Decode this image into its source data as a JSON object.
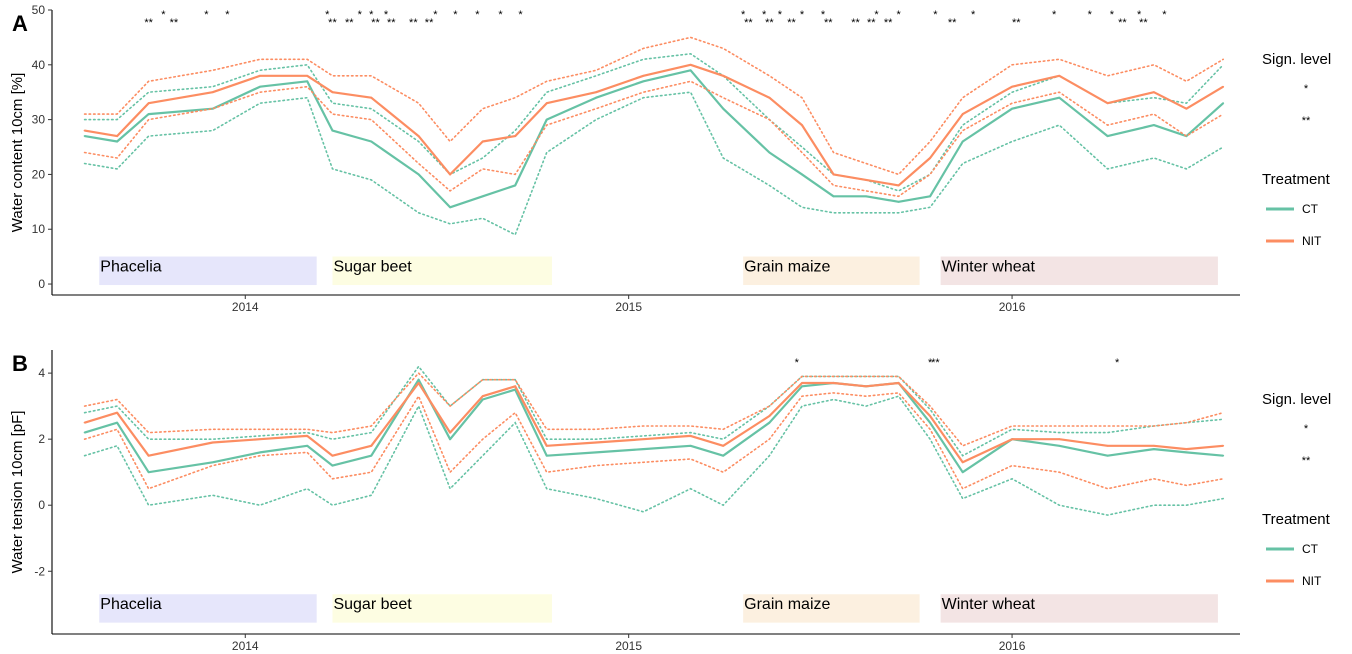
{
  "chart_data": [
    {
      "panel_letter": "A",
      "type": "line",
      "ylabel": "Water content 10cm [%]",
      "xlabel": "",
      "ylim": [
        -2,
        50
      ],
      "yticks": [
        "0",
        "10",
        "20",
        "30",
        "40",
        "50"
      ],
      "xlim": [
        "2013-07-01",
        "2016-08-05"
      ],
      "xticks": [
        "2014",
        "2015",
        "2016"
      ],
      "crop_periods": [
        {
          "label": "Phacelia",
          "start": "2013-08-15",
          "end": "2014-03-10",
          "color": "#e6e6fb"
        },
        {
          "label": "Sugar beet",
          "start": "2014-03-25",
          "end": "2014-10-20",
          "color": "#fdfde2"
        },
        {
          "label": "Grain maize",
          "start": "2015-04-20",
          "end": "2015-10-05",
          "color": "#fcf0e0"
        },
        {
          "label": "Winter wheat",
          "start": "2015-10-25",
          "end": "2016-07-15",
          "color": "#f3e4e4"
        }
      ],
      "series": [
        {
          "name": "CT",
          "color": "#66c2a5",
          "x": [
            "2013-08-01",
            "2013-09-01",
            "2013-10-01",
            "2013-12-01",
            "2014-01-15",
            "2014-03-01",
            "2014-03-25",
            "2014-05-01",
            "2014-06-15",
            "2014-07-15",
            "2014-08-15",
            "2014-09-15",
            "2014-10-15",
            "2014-12-01",
            "2015-01-15",
            "2015-03-01",
            "2015-04-01",
            "2015-05-15",
            "2015-06-15",
            "2015-07-15",
            "2015-08-15",
            "2015-09-15",
            "2015-10-15",
            "2015-11-15",
            "2016-01-01",
            "2016-02-15",
            "2016-04-01",
            "2016-05-15",
            "2016-06-15",
            "2016-07-20"
          ],
          "y": [
            27,
            26,
            31,
            32,
            36,
            37,
            28,
            26,
            20,
            14,
            16,
            18,
            30,
            34,
            37,
            39,
            32,
            24,
            20,
            16,
            16,
            15,
            16,
            26,
            32,
            34,
            27,
            29,
            27,
            33
          ],
          "lower": [
            22,
            21,
            27,
            28,
            33,
            34,
            21,
            19,
            13,
            11,
            12,
            9,
            24,
            30,
            34,
            35,
            23,
            18,
            14,
            13,
            13,
            13,
            14,
            22,
            26,
            29,
            21,
            23,
            21,
            25
          ],
          "upper": [
            30,
            30,
            35,
            36,
            39,
            40,
            33,
            32,
            26,
            20,
            23,
            28,
            35,
            38,
            41,
            42,
            38,
            30,
            25,
            20,
            19,
            17,
            20,
            29,
            35,
            38,
            33,
            34,
            33,
            40
          ]
        },
        {
          "name": "NIT",
          "color": "#fc8d62",
          "x": [
            "2013-08-01",
            "2013-09-01",
            "2013-10-01",
            "2013-12-01",
            "2014-01-15",
            "2014-03-01",
            "2014-03-25",
            "2014-05-01",
            "2014-06-15",
            "2014-07-15",
            "2014-08-15",
            "2014-09-15",
            "2014-10-15",
            "2014-12-01",
            "2015-01-15",
            "2015-03-01",
            "2015-04-01",
            "2015-05-15",
            "2015-06-15",
            "2015-07-15",
            "2015-08-15",
            "2015-09-15",
            "2015-10-15",
            "2015-11-15",
            "2016-01-01",
            "2016-02-15",
            "2016-04-01",
            "2016-05-15",
            "2016-06-15",
            "2016-07-20"
          ],
          "y": [
            28,
            27,
            33,
            35,
            38,
            38,
            35,
            34,
            27,
            20,
            26,
            27,
            33,
            35,
            38,
            40,
            38,
            34,
            29,
            20,
            19,
            18,
            23,
            31,
            36,
            38,
            33,
            35,
            32,
            36
          ],
          "lower": [
            24,
            23,
            30,
            32,
            35,
            36,
            31,
            30,
            22,
            17,
            21,
            20,
            29,
            32,
            35,
            37,
            34,
            30,
            24,
            18,
            17,
            16,
            20,
            28,
            33,
            35,
            29,
            31,
            27,
            31
          ],
          "upper": [
            31,
            31,
            37,
            39,
            41,
            41,
            38,
            38,
            33,
            26,
            32,
            34,
            37,
            39,
            43,
            45,
            43,
            38,
            34,
            24,
            22,
            20,
            26,
            34,
            40,
            41,
            38,
            40,
            37,
            41
          ]
        }
      ]
    },
    {
      "panel_letter": "B",
      "type": "line",
      "ylabel": "Water tension 10cm [pF]",
      "xlabel": "",
      "ylim": [
        -3.9,
        4.7
      ],
      "yticks": [
        "-2",
        "0",
        "2",
        "4"
      ],
      "xlim": [
        "2013-07-01",
        "2016-08-05"
      ],
      "xticks": [
        "2014",
        "2015",
        "2016"
      ],
      "crop_periods": [
        {
          "label": "Phacelia",
          "start": "2013-08-15",
          "end": "2014-03-10",
          "color": "#e6e6fb"
        },
        {
          "label": "Sugar beet",
          "start": "2014-03-25",
          "end": "2014-10-20",
          "color": "#fdfde2"
        },
        {
          "label": "Grain maize",
          "start": "2015-04-20",
          "end": "2015-10-05",
          "color": "#fcf0e0"
        },
        {
          "label": "Winter wheat",
          "start": "2015-10-25",
          "end": "2016-07-15",
          "color": "#f3e4e4"
        }
      ],
      "series": [
        {
          "name": "CT",
          "color": "#66c2a5",
          "x": [
            "2013-08-01",
            "2013-09-01",
            "2013-10-01",
            "2013-12-01",
            "2014-01-15",
            "2014-03-01",
            "2014-03-25",
            "2014-05-01",
            "2014-06-15",
            "2014-07-15",
            "2014-08-15",
            "2014-09-15",
            "2014-10-15",
            "2014-12-01",
            "2015-01-15",
            "2015-03-01",
            "2015-04-01",
            "2015-05-15",
            "2015-06-15",
            "2015-07-15",
            "2015-08-15",
            "2015-09-15",
            "2015-10-15",
            "2015-11-15",
            "2016-01-01",
            "2016-02-15",
            "2016-04-01",
            "2016-05-15",
            "2016-06-15",
            "2016-07-20"
          ],
          "y": [
            2.2,
            2.5,
            1.0,
            1.3,
            1.6,
            1.8,
            1.2,
            1.5,
            3.8,
            2.0,
            3.2,
            3.5,
            1.5,
            1.6,
            1.7,
            1.8,
            1.5,
            2.5,
            3.6,
            3.7,
            3.6,
            3.7,
            2.5,
            1.0,
            2.0,
            1.8,
            1.5,
            1.7,
            1.6,
            1.5
          ],
          "lower": [
            1.5,
            1.8,
            0.0,
            0.3,
            0.0,
            0.5,
            0.0,
            0.3,
            3.0,
            0.5,
            1.5,
            2.5,
            0.5,
            0.2,
            -0.2,
            0.5,
            0.0,
            1.5,
            3.0,
            3.2,
            3.0,
            3.3,
            2.0,
            0.2,
            0.8,
            0.0,
            -0.3,
            0.0,
            0.0,
            0.2
          ],
          "upper": [
            2.8,
            3.0,
            2.0,
            2.0,
            2.1,
            2.2,
            2.0,
            2.2,
            4.2,
            3.0,
            3.8,
            3.8,
            2.0,
            2.0,
            2.1,
            2.2,
            2.0,
            3.0,
            3.9,
            3.9,
            3.9,
            3.9,
            2.9,
            1.5,
            2.3,
            2.2,
            2.2,
            2.4,
            2.5,
            2.6
          ]
        },
        {
          "name": "NIT",
          "color": "#fc8d62",
          "x": [
            "2013-08-01",
            "2013-09-01",
            "2013-10-01",
            "2013-12-01",
            "2014-01-15",
            "2014-03-01",
            "2014-03-25",
            "2014-05-01",
            "2014-06-15",
            "2014-07-15",
            "2014-08-15",
            "2014-09-15",
            "2014-10-15",
            "2014-12-01",
            "2015-01-15",
            "2015-03-01",
            "2015-04-01",
            "2015-05-15",
            "2015-06-15",
            "2015-07-15",
            "2015-08-15",
            "2015-09-15",
            "2015-10-15",
            "2015-11-15",
            "2016-01-01",
            "2016-02-15",
            "2016-04-01",
            "2016-05-15",
            "2016-06-15",
            "2016-07-20"
          ],
          "y": [
            2.5,
            2.8,
            1.5,
            1.9,
            2.0,
            2.1,
            1.5,
            1.8,
            3.7,
            2.2,
            3.3,
            3.6,
            1.8,
            1.9,
            2.0,
            2.1,
            1.8,
            2.7,
            3.7,
            3.7,
            3.6,
            3.7,
            2.7,
            1.3,
            2.0,
            2.0,
            1.8,
            1.8,
            1.7,
            1.8
          ],
          "lower": [
            2.0,
            2.3,
            0.5,
            1.2,
            1.5,
            1.6,
            0.8,
            1.0,
            3.3,
            1.0,
            2.0,
            2.8,
            1.0,
            1.2,
            1.3,
            1.4,
            1.0,
            2.0,
            3.3,
            3.4,
            3.3,
            3.4,
            2.3,
            0.5,
            1.2,
            1.0,
            0.5,
            0.8,
            0.6,
            0.8
          ],
          "upper": [
            3.0,
            3.2,
            2.2,
            2.3,
            2.3,
            2.3,
            2.2,
            2.4,
            4.0,
            3.0,
            3.8,
            3.8,
            2.3,
            2.3,
            2.4,
            2.4,
            2.3,
            3.0,
            3.9,
            3.9,
            3.9,
            3.9,
            3.0,
            1.8,
            2.4,
            2.4,
            2.4,
            2.4,
            2.5,
            2.8
          ]
        }
      ]
    }
  ],
  "significance": [
    {
      "panel": "A",
      "level1": [
        "2013-10-15",
        "2013-11-25",
        "2013-12-15",
        "2014-03-20",
        "2014-04-20",
        "2014-05-01",
        "2014-05-15",
        "2014-07-01",
        "2014-07-20",
        "2014-08-10",
        "2014-09-01",
        "2014-09-20",
        "2015-04-20",
        "2015-05-10",
        "2015-05-25",
        "2015-06-15",
        "2015-07-05",
        "2015-08-25",
        "2015-09-15",
        "2015-10-20",
        "2015-11-25",
        "2016-02-10",
        "2016-03-15",
        "2016-04-05",
        "2016-05-01",
        "2016-05-25"
      ],
      "level2": [
        "2013-10-01",
        "2013-10-25",
        "2014-03-25",
        "2014-04-10",
        "2014-05-05",
        "2014-05-20",
        "2014-06-10",
        "2014-06-25",
        "2015-04-25",
        "2015-05-15",
        "2015-06-05",
        "2015-07-10",
        "2015-08-05",
        "2015-08-20",
        "2015-09-05",
        "2015-11-05",
        "2016-01-05",
        "2016-04-15",
        "2016-05-05"
      ]
    },
    {
      "panel": "B",
      "level1": [
        "2015-06-10",
        "2015-10-15",
        "2016-04-10"
      ],
      "level2": [
        "2015-10-20"
      ]
    }
  ],
  "legend": {
    "sign_title": "Sign. level",
    "sign_items": [
      "*",
      "**"
    ],
    "treatment_title": "Treatment",
    "treatment_items": [
      {
        "label": "CT",
        "color": "#66c2a5"
      },
      {
        "label": "NIT",
        "color": "#fc8d62"
      }
    ]
  }
}
